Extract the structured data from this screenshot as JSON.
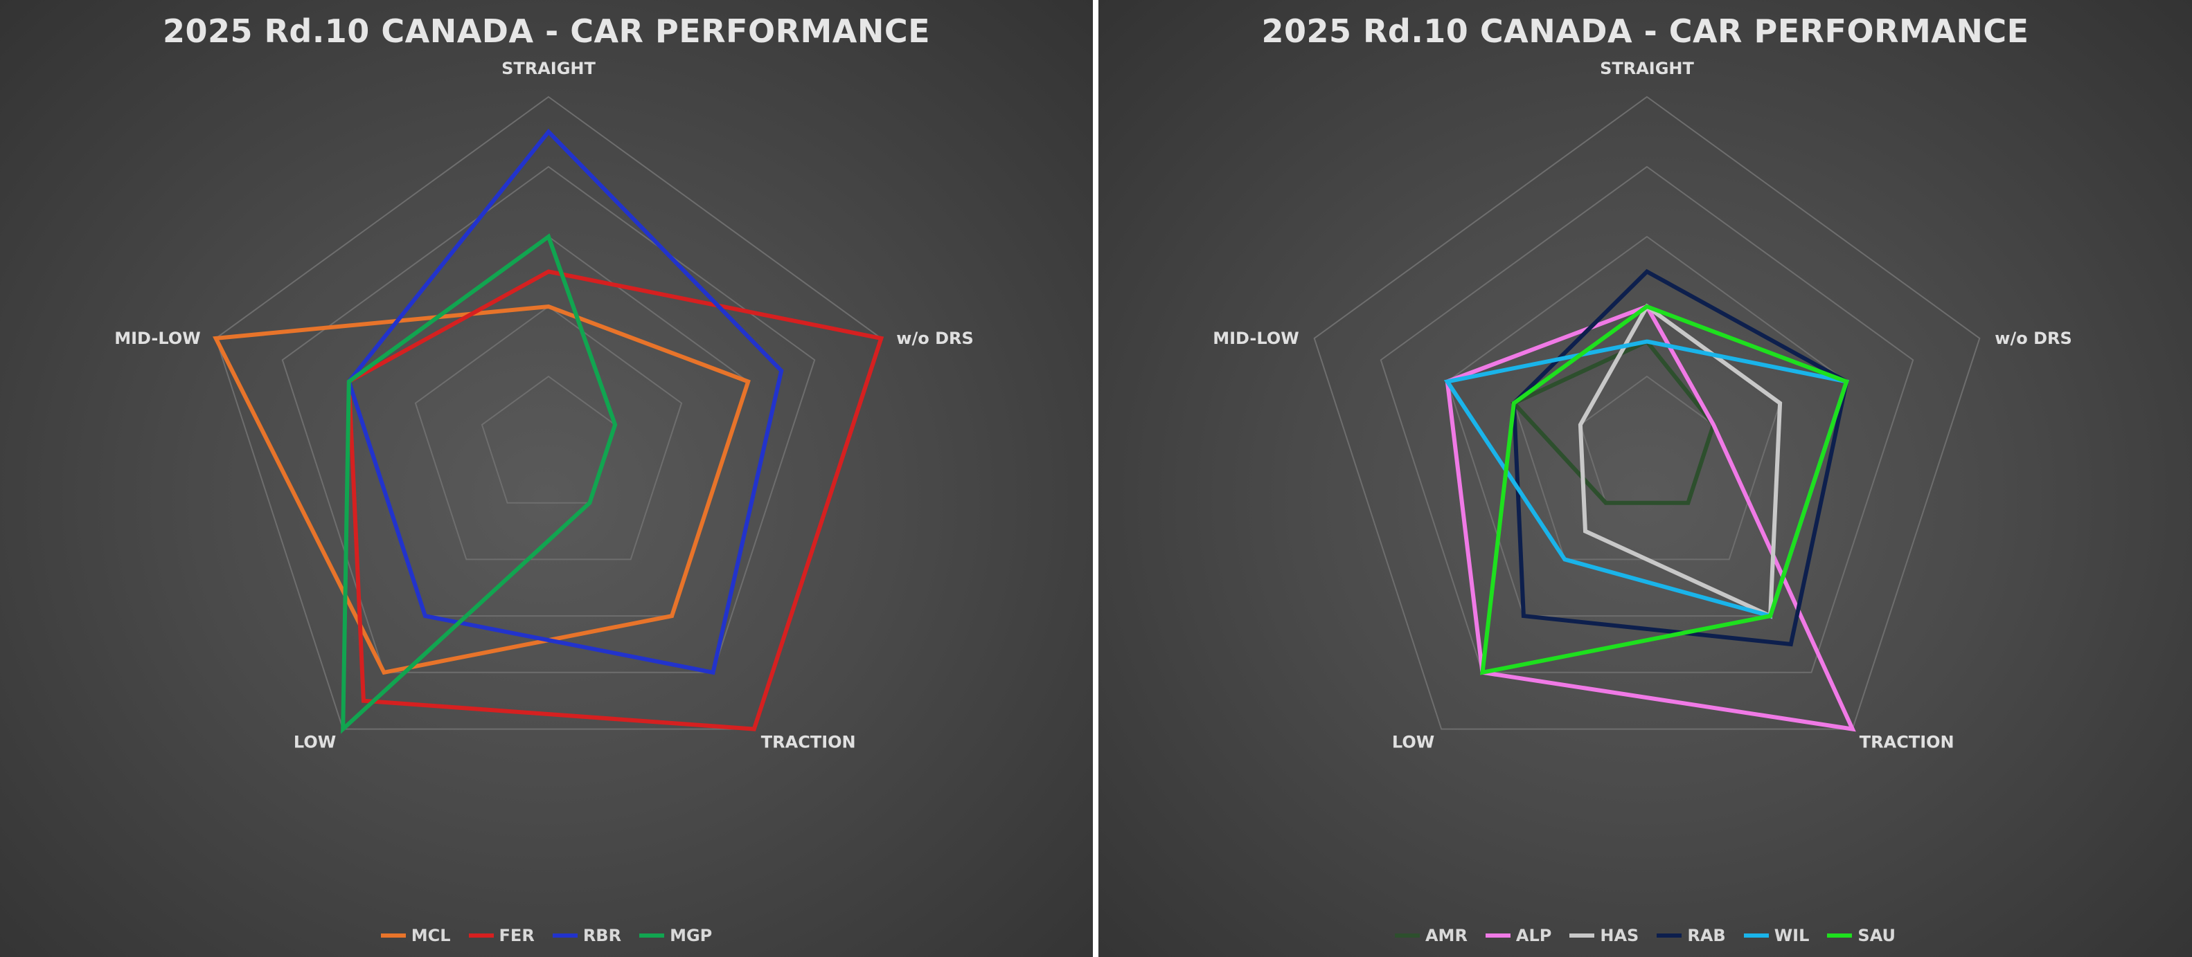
{
  "chart_data": [
    {
      "type": "radar",
      "title": "2025 Rd.10 CANADA - CAR PERFORMANCE",
      "axes": [
        "STRAIGHT",
        "w/o DRS",
        "TRACTION",
        "LOW",
        "MID-LOW"
      ],
      "rmax": 5,
      "grid_levels": [
        1,
        2,
        3,
        4,
        5
      ],
      "legend_position": "bottom",
      "series": [
        {
          "name": "MCL",
          "color": "#e8742a",
          "values": [
            2.0,
            3.0,
            3.0,
            4.0,
            5.0
          ]
        },
        {
          "name": "FER",
          "color": "#d62020",
          "values": [
            2.5,
            5.0,
            5.0,
            4.5,
            3.0
          ]
        },
        {
          "name": "RBR",
          "color": "#2233cc",
          "values": [
            4.5,
            3.5,
            4.0,
            3.0,
            3.0
          ]
        },
        {
          "name": "MGP",
          "color": "#11a550",
          "values": [
            3.0,
            1.0,
            1.0,
            5.0,
            3.0
          ]
        }
      ]
    },
    {
      "type": "radar",
      "title": "2025 Rd.10 CANADA - CAR PERFORMANCE",
      "axes": [
        "STRAIGHT",
        "w/o DRS",
        "TRACTION",
        "LOW",
        "MID-LOW"
      ],
      "rmax": 5,
      "grid_levels": [
        1,
        2,
        3,
        4,
        5
      ],
      "legend_position": "bottom",
      "series": [
        {
          "name": "AMR",
          "color": "#2d4f2d",
          "values": [
            1.5,
            1.0,
            1.0,
            1.0,
            2.0
          ]
        },
        {
          "name": "ALP",
          "color": "#f07ae6",
          "values": [
            2.0,
            1.0,
            5.0,
            4.0,
            3.0
          ]
        },
        {
          "name": "HAS",
          "color": "#c8c8c8",
          "values": [
            2.0,
            2.0,
            3.0,
            1.5,
            1.0
          ]
        },
        {
          "name": "RAB",
          "color": "#0d1f4d",
          "values": [
            2.5,
            3.0,
            3.5,
            3.0,
            2.0
          ]
        },
        {
          "name": "WIL",
          "color": "#1ab4ea",
          "values": [
            1.5,
            3.0,
            3.0,
            2.0,
            3.0
          ]
        },
        {
          "name": "SAU",
          "color": "#1ee01e",
          "values": [
            2.0,
            3.0,
            3.0,
            4.0,
            2.0
          ]
        }
      ]
    }
  ]
}
